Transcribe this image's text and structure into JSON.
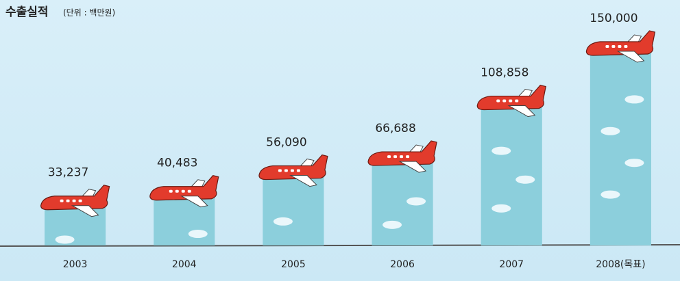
{
  "chart_data": {
    "type": "bar",
    "title": "수출실적",
    "subtitle": "(단위 : 백만원)",
    "categories": [
      "2003",
      "2004",
      "2005",
      "2006",
      "2007",
      "2008(목표)"
    ],
    "values": [
      33237,
      40483,
      56090,
      66688,
      108858,
      150000
    ],
    "value_labels": [
      "33,237",
      "40,483",
      "56,090",
      "66,688",
      "108,858",
      "150,000"
    ],
    "color": "#8ccfdc"
  }
}
